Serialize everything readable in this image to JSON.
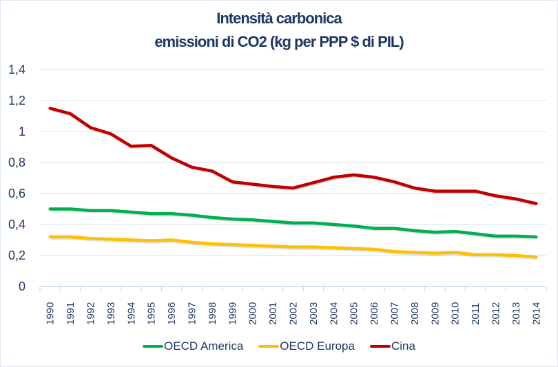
{
  "chart_data": {
    "type": "line",
    "title": "Intensità carbonica",
    "subtitle": "emissioni di CO2  (kg per PPP $ di PIL)",
    "xlabel": "",
    "ylabel": "",
    "ylim": [
      0,
      1.4
    ],
    "yticks": [
      "0",
      "0,2",
      "0,4",
      "0,6",
      "0,8",
      "1",
      "1,2",
      "1,4"
    ],
    "ytick_values": [
      0,
      0.2,
      0.4,
      0.6,
      0.8,
      1.0,
      1.2,
      1.4
    ],
    "grid": true,
    "legend_position": "bottom",
    "categories": [
      "1990",
      "1991",
      "1992",
      "1993",
      "1994",
      "1995",
      "1996",
      "1997",
      "1998",
      "1999",
      "2000",
      "2001",
      "2002",
      "2003",
      "2004",
      "2005",
      "2006",
      "2007",
      "2008",
      "2009",
      "2010",
      "2011",
      "2012",
      "2013",
      "2014"
    ],
    "series": [
      {
        "name": "OECD America",
        "color": "#00b050",
        "values": [
          0.5,
          0.5,
          0.49,
          0.49,
          0.48,
          0.47,
          0.47,
          0.46,
          0.445,
          0.435,
          0.43,
          0.42,
          0.41,
          0.41,
          0.4,
          0.39,
          0.375,
          0.375,
          0.36,
          0.35,
          0.355,
          0.34,
          0.325,
          0.325,
          0.32
        ]
      },
      {
        "name": "OECD Europa",
        "color": "#ffc000",
        "values": [
          0.32,
          0.32,
          0.31,
          0.305,
          0.3,
          0.295,
          0.3,
          0.285,
          0.275,
          0.27,
          0.265,
          0.26,
          0.255,
          0.255,
          0.25,
          0.245,
          0.24,
          0.225,
          0.22,
          0.215,
          0.22,
          0.205,
          0.205,
          0.2,
          0.19
        ]
      },
      {
        "name": "Cina",
        "color": "#c00000",
        "values": [
          1.15,
          1.115,
          1.025,
          0.985,
          0.905,
          0.91,
          0.83,
          0.77,
          0.745,
          0.675,
          0.66,
          0.645,
          0.635,
          0.67,
          0.705,
          0.72,
          0.705,
          0.675,
          0.635,
          0.615,
          0.615,
          0.615,
          0.585,
          0.565,
          0.535
        ]
      }
    ]
  }
}
